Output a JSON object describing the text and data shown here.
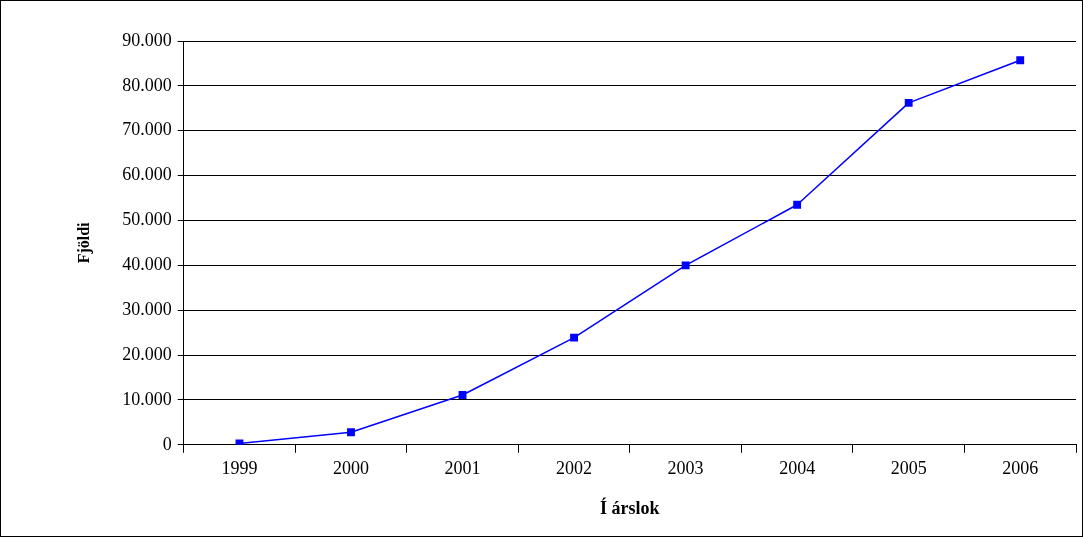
{
  "chart_data": {
    "type": "line",
    "xlabel": "Í árslok",
    "ylabel": "Fjöldi",
    "categories": [
      "1999",
      "2000",
      "2001",
      "2002",
      "2003",
      "2004",
      "2005",
      "2006"
    ],
    "series": [
      {
        "color": "#0000ff",
        "values": [
          300,
          2800,
          11100,
          23900,
          40000,
          53500,
          76200,
          85700
        ]
      }
    ],
    "ylim": [
      0,
      90000
    ],
    "yticks": [
      0,
      {
        "value": 10000,
        "label": "10.000"
      },
      {
        "value": 20000,
        "label": "20.000"
      },
      {
        "value": 30000,
        "label": "30.000"
      },
      {
        "value": 40000,
        "label": "40.000"
      },
      {
        "value": 50000,
        "label": "50.000"
      },
      {
        "value": 60000,
        "label": "60.000"
      },
      {
        "value": 70000,
        "label": "70.000"
      },
      {
        "value": 80000,
        "label": "80.000"
      },
      {
        "value": 90000,
        "label": "90.000"
      }
    ],
    "grid": "y",
    "marker": "square",
    "line_style": "solid"
  }
}
